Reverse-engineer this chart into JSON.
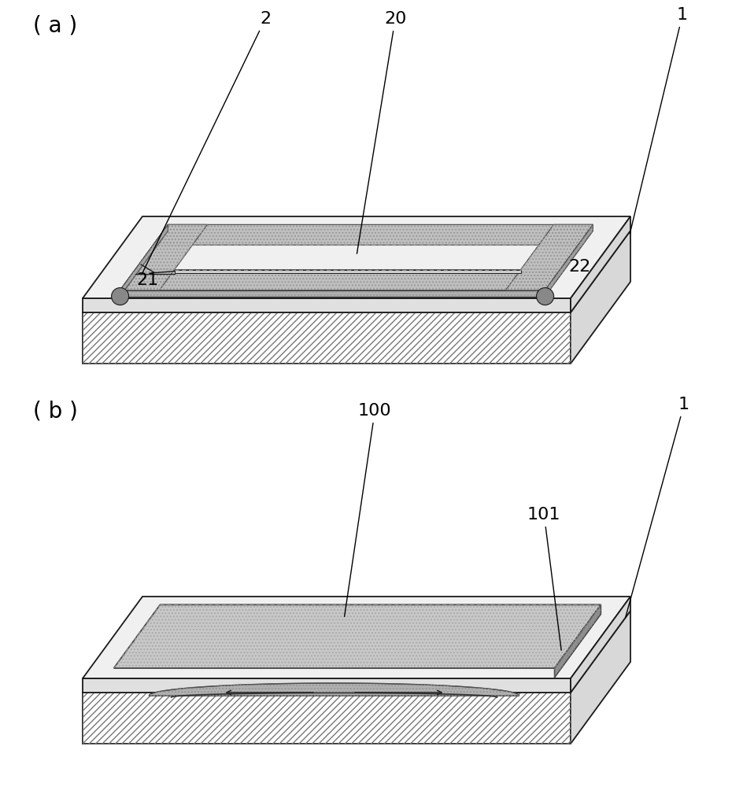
{
  "bg_color": "#ffffff",
  "lc": "#1a1a1a",
  "lw": 1.3,
  "label_a": "( a )",
  "label_b": "( b )",
  "hatch_pattern": "////",
  "stipple_gray": "#b8b8b8",
  "stipple_dark": "#888888",
  "plate_top_color": "#f0f0f0",
  "plate_front_color": "#e0e0e0",
  "plate_side_color": "#d8d8d8",
  "base_front_color": "#ffffff",
  "base_top_color": "#f4f4f4",
  "base_side_color": "#e8e8e8",
  "frame_stipple": "#c0c0c0",
  "frame_dark": "#888888",
  "film_stipple": "#c8c8c8",
  "film_edge_dark": "#909090",
  "bump_gray": "#999999"
}
